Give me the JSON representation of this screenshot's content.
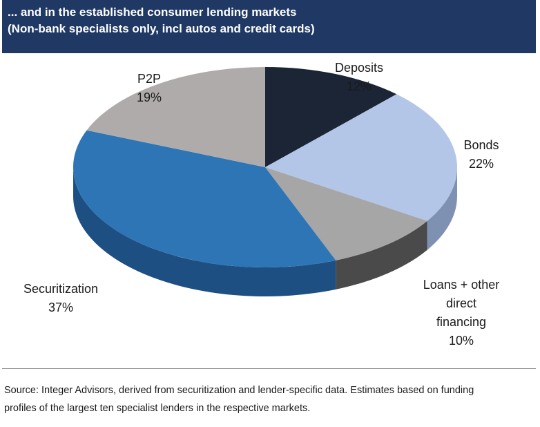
{
  "header": {
    "title": "... and in the established consumer lending markets",
    "subtitle": "(Non-bank specialists only, incl autos and credit cards)"
  },
  "chart_data": {
    "type": "pie",
    "title": "... and in the established consumer lending markets",
    "subtitle": "(Non-bank specialists only, incl autos and credit cards)",
    "slices": [
      {
        "label_lines": [
          "Deposits"
        ],
        "value": 12,
        "value_label": "12%",
        "color": "#1c2535",
        "side": "#141a26"
      },
      {
        "label_lines": [
          "Bonds"
        ],
        "value": 22,
        "value_label": "22%",
        "color": "#b3c6e7",
        "side": "#7f91b3"
      },
      {
        "label_lines": [
          "Loans + other",
          "direct",
          "financing"
        ],
        "value": 10,
        "value_label": "10%",
        "color": "#a6a6a6",
        "side": "#4a4a4a"
      },
      {
        "label_lines": [
          "Securitization"
        ],
        "value": 37,
        "value_label": "37%",
        "color": "#2e75b6",
        "side": "#1e4f82"
      },
      {
        "label_lines": [
          "P2P"
        ],
        "value": 19,
        "value_label": "19%",
        "color": "#b0abab",
        "side": "#8a8585"
      }
    ],
    "legend": "none"
  },
  "footer": {
    "source_line1": "Source:  Integer Advisors, derived from securitization and lender-specific data.  Estimates based on funding",
    "source_line2": "profiles of the largest ten specialist lenders in the respective markets."
  }
}
